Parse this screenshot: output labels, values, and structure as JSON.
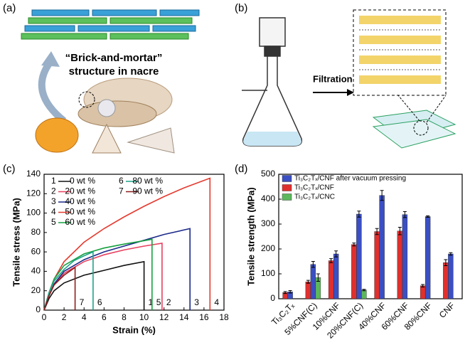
{
  "panels": {
    "a": {
      "label": "(a)",
      "caption_line1": "“Brick-and-mortar”",
      "caption_line2": "structure in nacre"
    },
    "b": {
      "label": "(b)",
      "arrow_label": "Filtration"
    },
    "c": {
      "label": "(c)"
    },
    "d": {
      "label": "(d)"
    }
  },
  "chart_data": [
    {
      "type": "line",
      "xlabel": "Strain (%)",
      "ylabel": "Tensile stress (MPa)",
      "xlim": [
        0,
        18
      ],
      "xticks": [
        0,
        2,
        4,
        6,
        8,
        10,
        12,
        14,
        16,
        18
      ],
      "ylim": [
        0,
        140
      ],
      "yticks": [
        0,
        20,
        40,
        60,
        80,
        100,
        120,
        140
      ],
      "legend": "upper left",
      "series": [
        {
          "label": "1",
          "name": "0 wt %",
          "color": "#111111",
          "x": [
            0,
            0.5,
            1,
            2,
            4,
            6,
            8,
            10,
            10
          ],
          "values": [
            0,
            12,
            20,
            28,
            36,
            41,
            46,
            50,
            0
          ]
        },
        {
          "label": "2",
          "name": "20 wt %",
          "color": "#e8405f",
          "x": [
            0,
            0.5,
            1,
            2,
            4,
            6,
            8,
            10,
            11.8,
            11.8
          ],
          "values": [
            0,
            15,
            26,
            38,
            50,
            57,
            62,
            66,
            69,
            0
          ]
        },
        {
          "label": "3",
          "name": "40 wt %",
          "color": "#1c2a8a",
          "x": [
            0,
            0.5,
            1,
            2,
            4,
            6,
            8,
            10,
            12,
            14.6,
            14.6
          ],
          "values": [
            0,
            15,
            27,
            40,
            52,
            60,
            66,
            72,
            78,
            84,
            0
          ]
        },
        {
          "label": "4",
          "name": "50 wt %",
          "color": "#e53a2f",
          "x": [
            0,
            0.5,
            1,
            2,
            4,
            6,
            8,
            10,
            12,
            14,
            16.6,
            16.6
          ],
          "values": [
            0,
            18,
            32,
            50,
            70,
            84,
            96,
            107,
            117,
            126,
            136,
            0
          ]
        },
        {
          "label": "5",
          "name": "60 wt %",
          "color": "#17a040",
          "x": [
            0,
            0.5,
            1,
            2,
            4,
            6,
            8,
            10.8,
            10.8
          ],
          "values": [
            0,
            18,
            32,
            46,
            58,
            64,
            68,
            73,
            0
          ]
        },
        {
          "label": "6",
          "name": "80 wt %",
          "color": "#1fa38a",
          "x": [
            0,
            0.5,
            1,
            2,
            3,
            4,
            4.9,
            4.9
          ],
          "values": [
            0,
            18,
            30,
            42,
            51,
            56,
            60,
            0
          ]
        },
        {
          "label": "7",
          "name": "90 wt %",
          "color": "#8e1b1b",
          "x": [
            0,
            0.5,
            1,
            2,
            3.1,
            3.1
          ],
          "values": [
            0,
            15,
            26,
            36,
            44,
            0
          ]
        }
      ]
    },
    {
      "type": "bar",
      "ylabel": "Tensile strength (MPa)",
      "categories": [
        "Ti₃C₂Tₓ",
        "5%CNF(C)",
        "10%CNF",
        "20%CNF(C)",
        "40%CNF",
        "60%CNF",
        "80%CNF",
        "CNF"
      ],
      "ylim": [
        0,
        500
      ],
      "yticks": [
        0,
        100,
        200,
        300,
        400,
        500
      ],
      "legend": "upper left",
      "series": [
        {
          "name": "Ti₃C₂Tₓ/CNF after vacuum pressing",
          "color": "#3b4fc4",
          "values": [
            28,
            138,
            180,
            340,
            415,
            338,
            330,
            180
          ],
          "errors": [
            5,
            12,
            12,
            12,
            20,
            12,
            3,
            5
          ]
        },
        {
          "name": "Ti₃C₂Tₓ/CNF",
          "color": "#e0302e",
          "values": [
            25,
            68,
            153,
            218,
            270,
            272,
            52,
            145
          ],
          "errors": [
            4,
            6,
            8,
            6,
            12,
            15,
            5,
            12
          ]
        },
        {
          "name": "Ti₃C₂Tₓ/CNC",
          "color": "#5cb85c",
          "values": [
            null,
            85,
            null,
            35,
            null,
            null,
            null,
            null
          ],
          "errors": [
            null,
            15,
            null,
            3,
            null,
            null,
            null,
            null
          ]
        }
      ]
    }
  ]
}
